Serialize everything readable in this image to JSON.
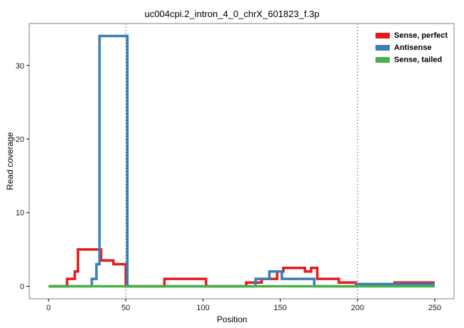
{
  "chart_data": {
    "type": "line",
    "line_style": "step",
    "title": "uc004cpi.2_intron_4_0_chrX_601823_f.3p",
    "xlabel": "Position",
    "ylabel": "Read coverage",
    "xlim": [
      -12.5,
      262.5
    ],
    "ylim": [
      -1.7,
      35.7
    ],
    "xticks": [
      0,
      50,
      100,
      150,
      200,
      250
    ],
    "yticks": [
      0,
      10,
      20,
      30
    ],
    "grid": false,
    "panel_border_color": "#808080",
    "vlines": {
      "positions": [
        50,
        200
      ],
      "style": "dotted",
      "color": "#555555"
    },
    "legend_position": "inside-top-right",
    "series": [
      {
        "name": "Sense, perfect",
        "color": "#E41A1C",
        "xend": 250,
        "steps": [
          [
            0,
            0
          ],
          [
            12,
            1
          ],
          [
            17,
            2
          ],
          [
            19,
            5
          ],
          [
            34,
            3.5
          ],
          [
            42,
            3
          ],
          [
            50,
            0
          ],
          [
            75,
            1
          ],
          [
            102,
            0
          ],
          [
            128,
            0.5
          ],
          [
            138,
            1
          ],
          [
            148,
            2
          ],
          [
            152,
            2.5
          ],
          [
            166,
            2
          ],
          [
            170,
            2.5
          ],
          [
            174,
            1
          ],
          [
            188,
            0.5
          ],
          [
            199,
            0.2
          ],
          [
            224,
            0.5
          ]
        ]
      },
      {
        "name": "Antisense",
        "color": "#377EB8",
        "xend": 250,
        "steps": [
          [
            0,
            0
          ],
          [
            28,
            1
          ],
          [
            31,
            3
          ],
          [
            33,
            34
          ],
          [
            51,
            0
          ],
          [
            134,
            1
          ],
          [
            143,
            2
          ],
          [
            151,
            1
          ],
          [
            172,
            0
          ],
          [
            199,
            0.3
          ]
        ]
      },
      {
        "name": "Sense, tailed",
        "color": "#4DAF4A",
        "xend": 250,
        "steps": [
          [
            0,
            0
          ]
        ]
      }
    ]
  }
}
